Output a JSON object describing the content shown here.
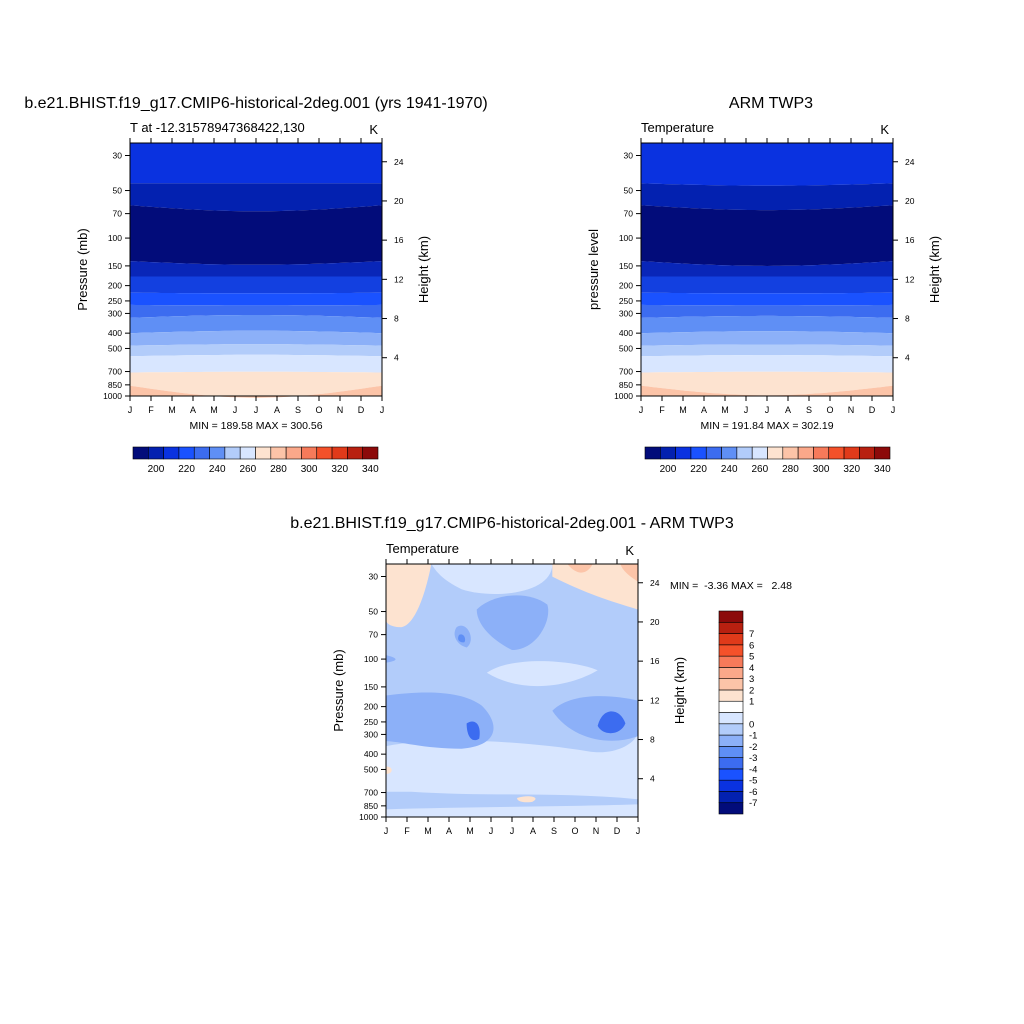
{
  "chart_data": [
    {
      "type": "heatmap",
      "title": "b.e21.BHIST.f19_g17.CMIP6-historical-2deg.001 (yrs 1941-1970)",
      "left_subtitle": "T at -12.31578947368422,130",
      "right_subtitle": "K",
      "ylabel": "Pressure (mb)",
      "ylabel_right": "Height (km)",
      "stats": "MIN = 189.58 MAX = 300.56",
      "x": [
        "J",
        "F",
        "M",
        "A",
        "M",
        "J",
        "J",
        "A",
        "S",
        "O",
        "N",
        "D",
        "J"
      ],
      "y_pressure_ticks": [
        30,
        50,
        70,
        100,
        150,
        200,
        250,
        300,
        400,
        500,
        700,
        850,
        1000
      ],
      "y_height_ticks": [
        24,
        20,
        16,
        12,
        8,
        4
      ],
      "ylim": [
        1000,
        25
      ],
      "boundary_pressures": [
        45,
        62,
        140,
        175,
        222,
        265,
        320,
        400,
        480,
        560,
        710,
        860
      ],
      "boundary_variation": [
        0,
        0.25,
        0.15,
        0,
        0.02,
        0.02,
        -0.12,
        -0.1,
        -0.06,
        -0.06,
        -0.03,
        0.5
      ],
      "band_colors": [
        "#0a32e0",
        "#0321b0",
        "#020c7a",
        "#0926b8",
        "#1340e0",
        "#1a52ff",
        "#3c6cf0",
        "#5f8ff5",
        "#8cb0f8",
        "#b2ccfa",
        "#d8e6ff",
        "#fde3d0",
        "#fcc4a8",
        "#fba88a"
      ],
      "colorbar": {
        "colors": [
          "#020c7a",
          "#0321b0",
          "#0a32e0",
          "#1a52ff",
          "#3c6cf0",
          "#5f8ff5",
          "#b2ccfa",
          "#d8e6ff",
          "#fde3d0",
          "#fcc4a8",
          "#fba88a",
          "#f67a5a",
          "#f4512a",
          "#e03a1a",
          "#b82010",
          "#8c0a0a"
        ],
        "labels": [
          "200",
          "220",
          "240",
          "260",
          "280",
          "300",
          "320",
          "340"
        ]
      }
    },
    {
      "type": "heatmap",
      "title": "ARM TWP3",
      "left_subtitle": "Temperature",
      "right_subtitle": "K",
      "ylabel": "pressure level",
      "ylabel_right": "Height (km)",
      "stats": "MIN = 191.84 MAX = 302.19",
      "x": [
        "J",
        "F",
        "M",
        "A",
        "M",
        "J",
        "J",
        "A",
        "S",
        "O",
        "N",
        "D",
        "J"
      ],
      "y_pressure_ticks": [
        30,
        50,
        70,
        100,
        150,
        200,
        250,
        300,
        400,
        500,
        700,
        850,
        1000
      ],
      "y_height_ticks": [
        24,
        20,
        16,
        12,
        8,
        4
      ],
      "ylim": [
        1000,
        25
      ],
      "boundary_pressures": [
        45,
        62,
        140,
        175,
        222,
        265,
        320,
        400,
        480,
        560,
        710,
        860
      ],
      "boundary_variation": [
        0.1,
        0.2,
        0.2,
        0,
        0.02,
        0.02,
        -0.08,
        -0.08,
        -0.05,
        -0.05,
        -0.03,
        0.4
      ],
      "band_colors": [
        "#0a32e0",
        "#0321b0",
        "#020c7a",
        "#0926b8",
        "#1340e0",
        "#1a52ff",
        "#3c6cf0",
        "#5f8ff5",
        "#8cb0f8",
        "#b2ccfa",
        "#d8e6ff",
        "#fde3d0",
        "#fcc4a8",
        "#fba88a"
      ],
      "colorbar": {
        "colors": [
          "#020c7a",
          "#0321b0",
          "#0a32e0",
          "#1a52ff",
          "#3c6cf0",
          "#5f8ff5",
          "#b2ccfa",
          "#d8e6ff",
          "#fde3d0",
          "#fcc4a8",
          "#fba88a",
          "#f67a5a",
          "#f4512a",
          "#e03a1a",
          "#b82010",
          "#8c0a0a"
        ],
        "labels": [
          "200",
          "220",
          "240",
          "260",
          "280",
          "300",
          "320",
          "340"
        ]
      }
    },
    {
      "type": "heatmap",
      "title": "b.e21.BHIST.f19_g17.CMIP6-historical-2deg.001 - ARM TWP3",
      "left_subtitle": "Temperature",
      "right_subtitle": "K",
      "ylabel": "Pressure (mb)",
      "ylabel_right": "Height (km)",
      "stats": "MIN =  -3.36 MAX =   2.48",
      "x": [
        "J",
        "F",
        "M",
        "A",
        "M",
        "J",
        "J",
        "A",
        "S",
        "O",
        "N",
        "D",
        "J"
      ],
      "y_pressure_ticks": [
        30,
        50,
        70,
        100,
        150,
        200,
        250,
        300,
        400,
        500,
        700,
        850,
        1000
      ],
      "y_height_ticks": [
        24,
        20,
        16,
        12,
        8,
        4
      ],
      "ylim": [
        1000,
        25
      ],
      "background_color": "#b2ccfa",
      "colorbar": {
        "orientation": "vertical",
        "colors": [
          "#020c7a",
          "#0321b0",
          "#0a32e0",
          "#1a52ff",
          "#3c6cf0",
          "#5f8ff5",
          "#8cb0f8",
          "#b2ccfa",
          "#d8e6ff",
          "#ffffff",
          "#fde3d0",
          "#fcc4a8",
          "#fba88a",
          "#f67a5a",
          "#f4512a",
          "#e03a1a",
          "#b82010",
          "#8c0a0a"
        ],
        "labels": [
          "-7",
          "-6",
          "-5",
          "-4",
          "-3",
          "-2",
          "-1",
          "0",
          "1",
          "2",
          "3",
          "4",
          "5",
          "6",
          "7"
        ]
      }
    }
  ]
}
